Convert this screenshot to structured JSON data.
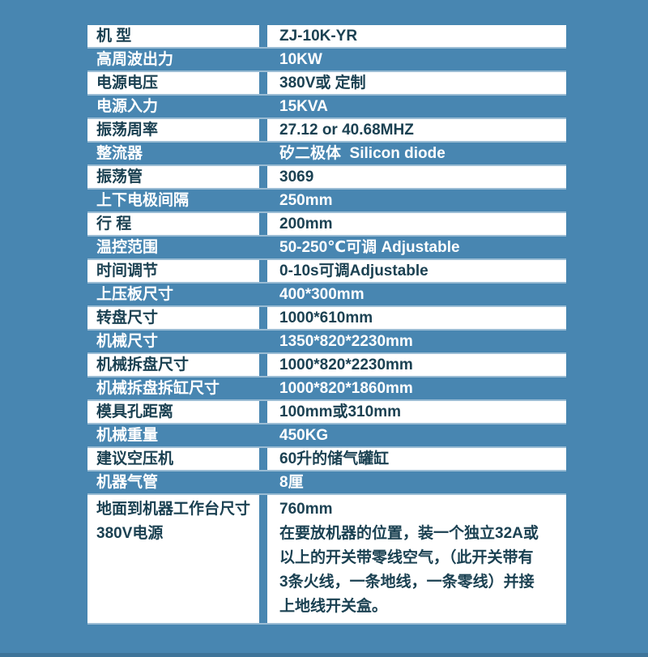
{
  "colors": {
    "page_background": "#4886B1",
    "row_white": "#FFFFFF",
    "text_dark": "#1B4152",
    "text_light": "#FFFFFF",
    "separator": "#FFFFFF73"
  },
  "table": {
    "rows": [
      {
        "label": "机 型",
        "value": "ZJ-10K-YR"
      },
      {
        "label": "高周波出力",
        "value": "10KW"
      },
      {
        "label": "电源电压",
        "value": "380V或 定制"
      },
      {
        "label": "电源入力",
        "value": "15KVA"
      },
      {
        "label": "振荡周率",
        "value": "27.12 or 40.68MHZ"
      },
      {
        "label": "整流器",
        "value": "矽二极体  Silicon diode"
      },
      {
        "label": "振荡管",
        "value": "3069"
      },
      {
        "label": "上下电极间隔",
        "value": "250mm"
      },
      {
        "label": "行 程",
        "value": "200mm"
      },
      {
        "label": "温控范围",
        "value": "50-250℃可调 Adjustable"
      },
      {
        "label": "时间调节",
        "value": "0-10s可调Adjustable"
      },
      {
        "label": "上压板尺寸",
        "value": "400*300mm"
      },
      {
        "label": "转盘尺寸",
        "value": "1000*610mm"
      },
      {
        "label": "机械尺寸",
        "value": "1350*820*2230mm"
      },
      {
        "label": "机械拆盘尺寸",
        "value": "1000*820*2230mm"
      },
      {
        "label": "机械拆盘拆缸尺寸",
        "value": "1000*820*1860mm"
      },
      {
        "label": "模具孔距离",
        "value": "100mm或310mm"
      },
      {
        "label": "机械重量",
        "value": "450KG"
      },
      {
        "label": "建议空压机",
        "value": "60升的储气罐缸"
      },
      {
        "label": "机器气管",
        "value": "8厘"
      },
      {
        "label": "地面到机器工作台尺寸\n380V电源",
        "value": "760mm\n在要放机器的位置，装一个独立32A或\n以上的开关带零线空气，（此开关带有\n3条火线，一条地线，一条零线）并接\n上地线开关盒。",
        "tall": true
      }
    ]
  }
}
